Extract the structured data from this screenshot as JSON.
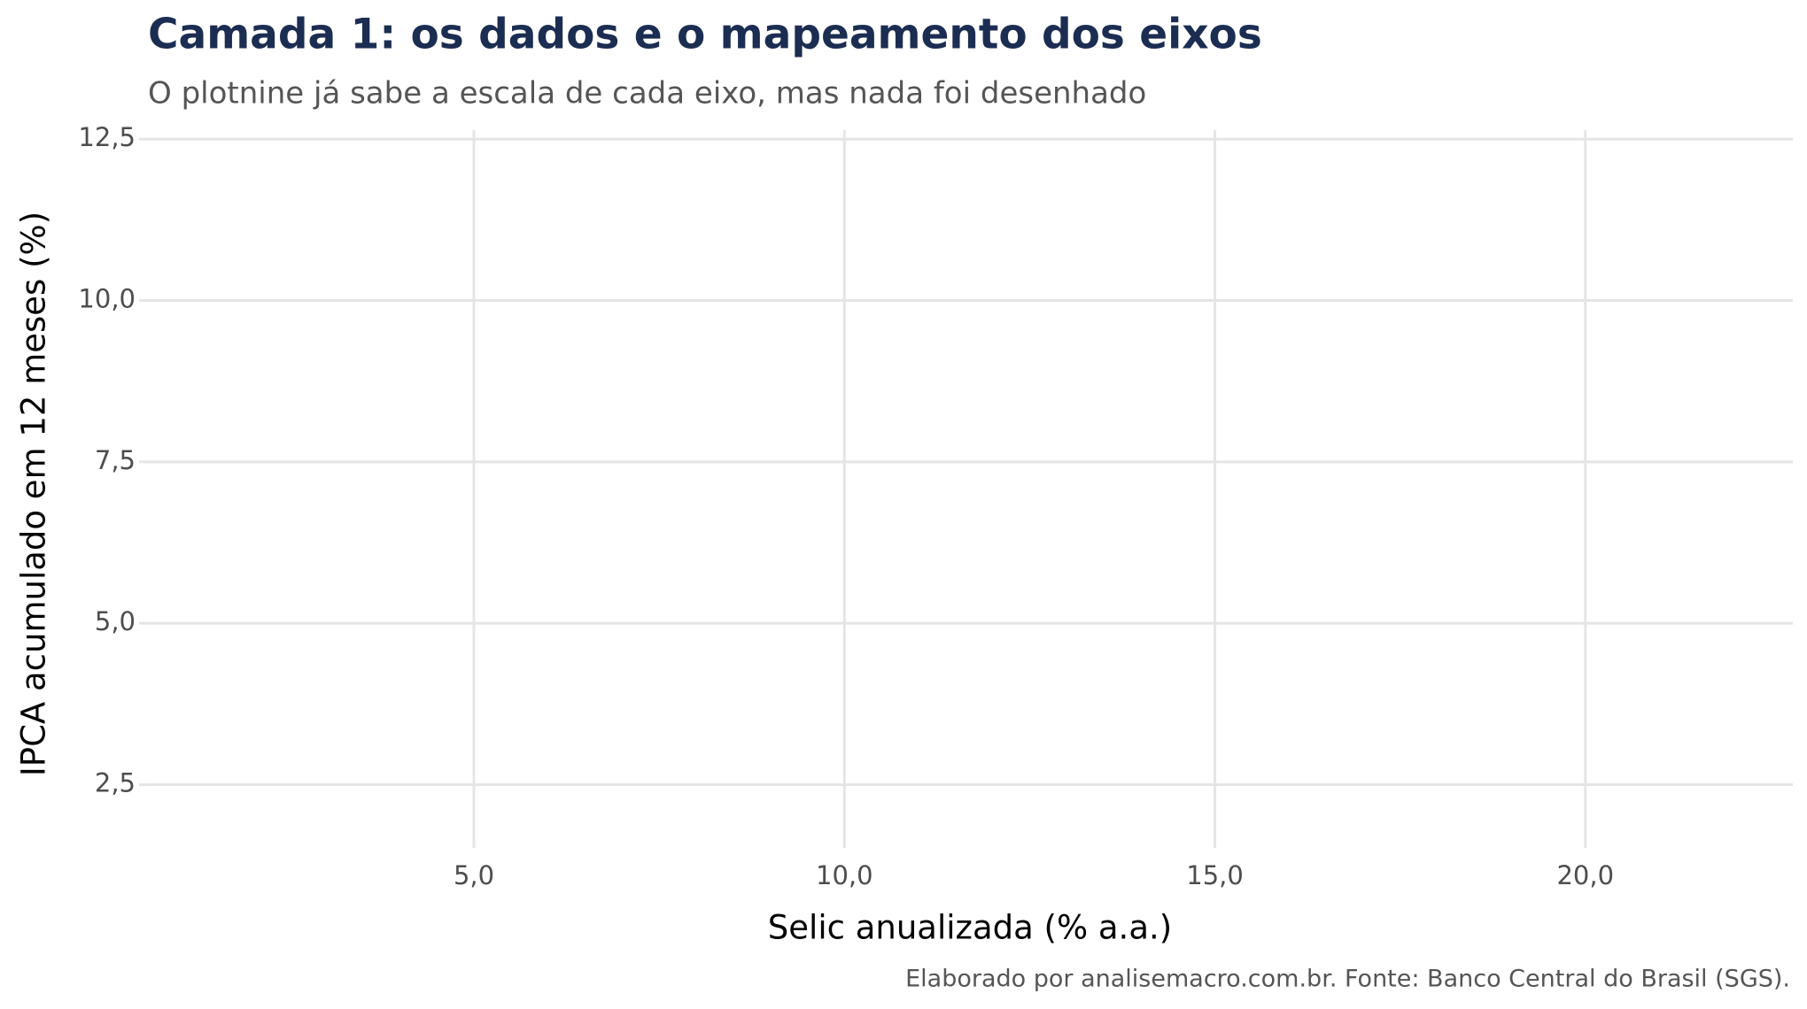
{
  "chart_data": {
    "type": "scatter",
    "title": "Camada 1: os dados e o mapeamento dos eixos",
    "subtitle": "O plotnine já sabe a escala de cada eixo, mas nada foi desenhado",
    "x_label": "Selic anualizada (% a.a.)",
    "y_label": "IPCA acumulado em 12 meses (%)",
    "caption": "Elaborado por analisemacro.com.br. Fonte: Banco Central do Brasil (SGS).",
    "xlim": [
      0.6,
      22.8
    ],
    "ylim": [
      1.52,
      12.64
    ],
    "xticks": [
      {
        "value": 5,
        "label": "5,0"
      },
      {
        "value": 10,
        "label": "10,0"
      },
      {
        "value": 15,
        "label": "15,0"
      },
      {
        "value": 20,
        "label": "20,0"
      }
    ],
    "yticks": [
      {
        "value": 2.5,
        "label": "2,5"
      },
      {
        "value": 5,
        "label": "5,0"
      },
      {
        "value": 7.5,
        "label": "7,5"
      },
      {
        "value": 10,
        "label": "10,0"
      },
      {
        "value": 12.5,
        "label": "12,5"
      }
    ],
    "grid": true
  }
}
